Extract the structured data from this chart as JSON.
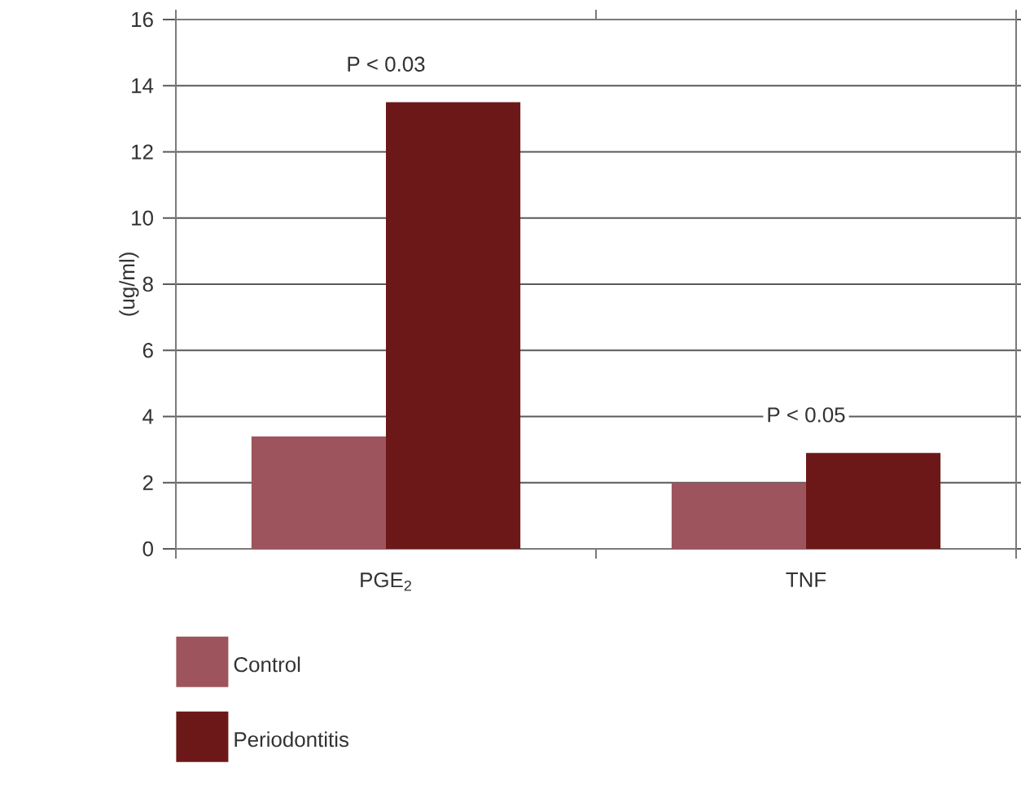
{
  "chart_data": {
    "type": "bar",
    "ylabel": "(ug/ml)",
    "categories": [
      "PGE$_{2}$",
      "TNF"
    ],
    "series": [
      {
        "name": "Control",
        "color": "#9e545c",
        "values": [
          3.4,
          2.0
        ]
      },
      {
        "name": "Periodontitis",
        "color": "#6d1818",
        "values": [
          13.5,
          2.9
        ]
      }
    ],
    "ylim": [
      0,
      16
    ],
    "yticks": [
      0,
      2,
      4,
      6,
      8,
      10,
      12,
      14,
      16
    ],
    "grid": "y",
    "legend": "bottom left",
    "annotations": [
      "P < 0.03",
      "P < 0.05"
    ]
  }
}
